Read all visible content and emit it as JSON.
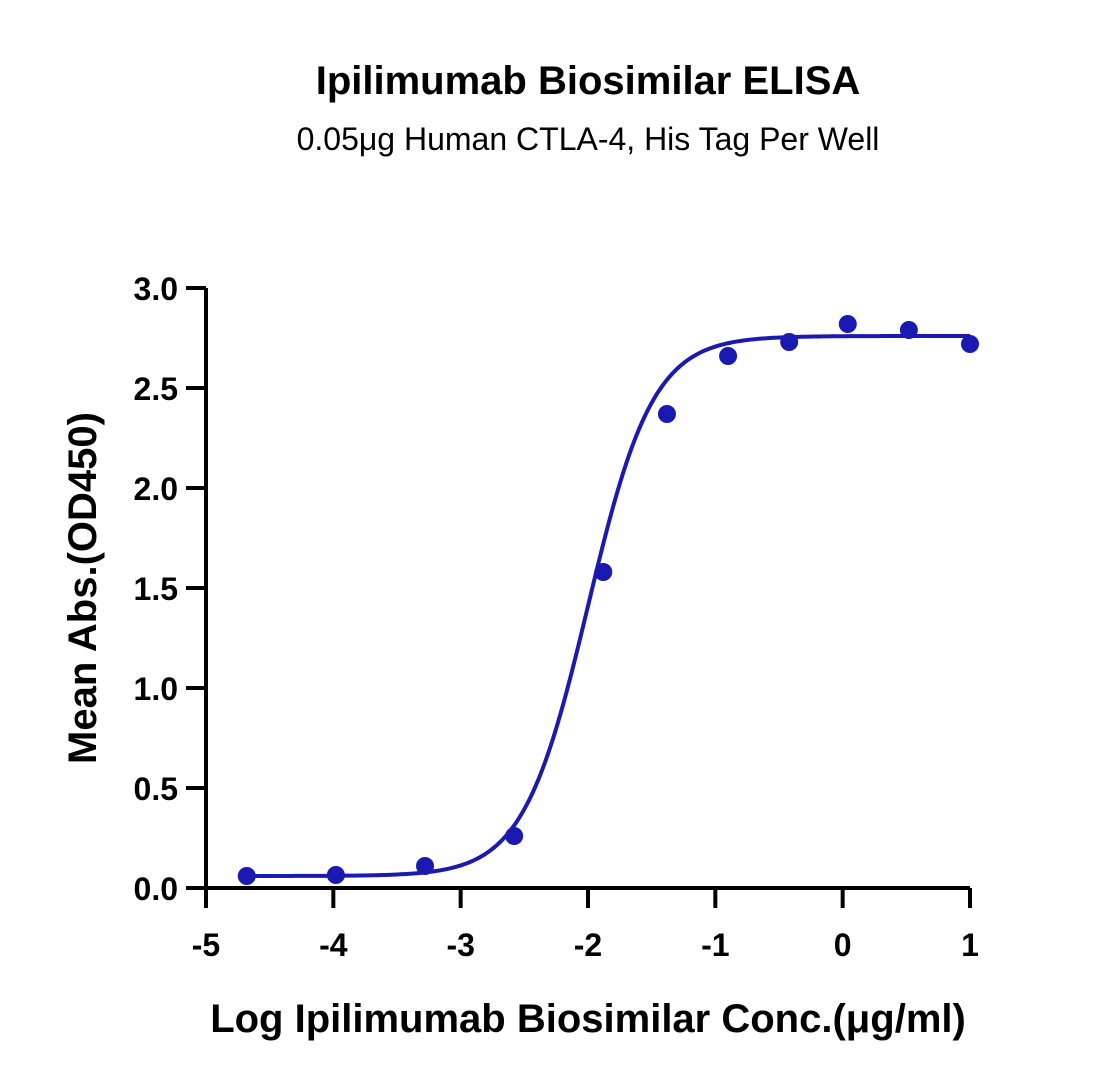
{
  "chart_data": {
    "type": "scatter",
    "title": "Ipilimumab Biosimilar ELISA",
    "subtitle": "0.05μg Human CTLA-4, His Tag Per Well",
    "xlabel": "Log Ipilimumab Biosimilar Conc.(μg/ml)",
    "ylabel": "Mean Abs.(OD450)",
    "xlim": [
      -5,
      1
    ],
    "ylim": [
      0,
      3
    ],
    "x_ticks": [
      -5,
      -4,
      -3,
      -2,
      -1,
      0,
      1
    ],
    "x_tick_labels": [
      "-5",
      "-4",
      "-3",
      "-2",
      "-1",
      "0",
      "1"
    ],
    "y_ticks": [
      0,
      0.5,
      1,
      1.5,
      2,
      2.5,
      3
    ],
    "y_tick_labels": [
      "0.0",
      "0.5",
      "1.0",
      "1.5",
      "2.0",
      "2.5",
      "3.0"
    ],
    "grid": false,
    "series": [
      {
        "color": "#1a1ab3",
        "points": [
          {
            "x": -4.68,
            "y": 0.06
          },
          {
            "x": -3.98,
            "y": 0.065
          },
          {
            "x": -3.28,
            "y": 0.11
          },
          {
            "x": -2.58,
            "y": 0.26
          },
          {
            "x": -1.88,
            "y": 1.58
          },
          {
            "x": -1.38,
            "y": 2.37
          },
          {
            "x": -0.9,
            "y": 2.66
          },
          {
            "x": -0.42,
            "y": 2.73
          },
          {
            "x": 0.04,
            "y": 2.82
          },
          {
            "x": 0.52,
            "y": 2.79
          },
          {
            "x": 1.0,
            "y": 2.72
          }
        ],
        "fit": {
          "model": "four-parameter logistic",
          "bottom": 0.06,
          "top": 2.76,
          "log_ec50": -2.0,
          "hill_slope": 1.7
        }
      }
    ]
  }
}
